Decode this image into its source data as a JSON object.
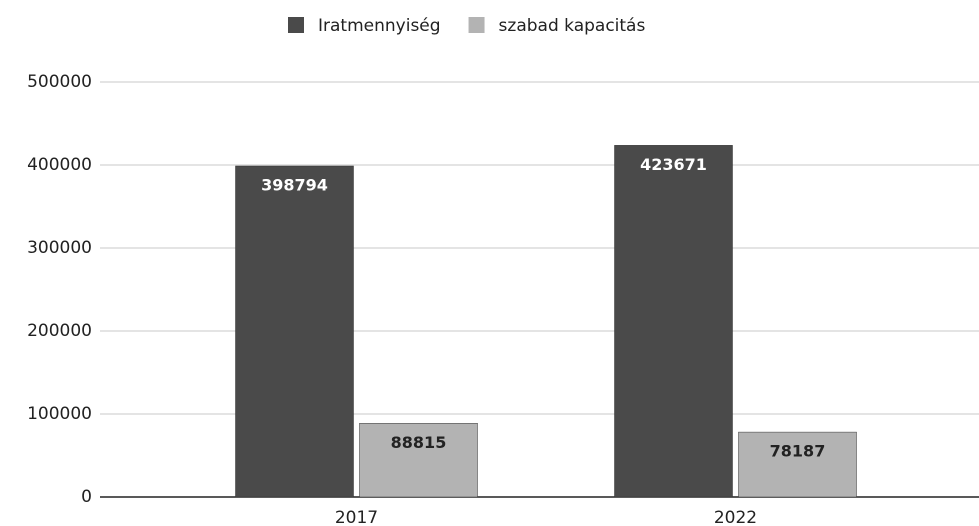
{
  "chart_data": {
    "type": "bar",
    "categories": [
      "2017",
      "2022"
    ],
    "series": [
      {
        "name": "Iratmennyiség",
        "color": "#4a4a4a",
        "values": [
          398794,
          423671
        ]
      },
      {
        "name": "szabad kapacitás",
        "color": "#b3b3b3",
        "values": [
          88815,
          78187
        ]
      }
    ],
    "ylim": [
      0,
      500000
    ],
    "yticks": [
      0,
      100000,
      200000,
      300000,
      400000,
      500000
    ],
    "grid": true,
    "legend": "top"
  }
}
